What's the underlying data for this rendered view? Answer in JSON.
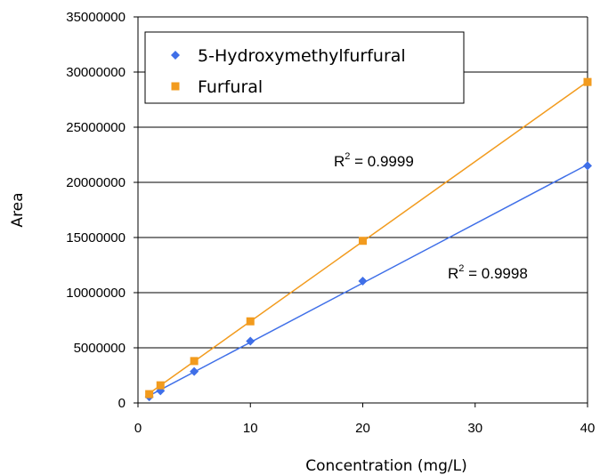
{
  "chart_data": {
    "type": "scatter",
    "title": "",
    "xlabel": "Concentration (mg/L)",
    "ylabel": "Area",
    "xlim": [
      0,
      40
    ],
    "ylim": [
      0,
      35000000
    ],
    "xticks": [
      0,
      10,
      20,
      30,
      40
    ],
    "yticks": [
      0,
      5000000,
      10000000,
      15000000,
      20000000,
      25000000,
      30000000,
      35000000
    ],
    "grid": "horizontal",
    "legend_position": "top-left",
    "series": [
      {
        "name": "5-Hydroxymethylfurfural",
        "marker": "diamond",
        "color": "#3f6fe8",
        "x": [
          1,
          2,
          5,
          10,
          20,
          40
        ],
        "y": [
          550000,
          1100000,
          2850000,
          5600000,
          11050000,
          21500000
        ],
        "trendline": true,
        "r2_label": "R",
        "r2_sup": "2",
        "r2_value": " = 0.9998"
      },
      {
        "name": "Furfural",
        "marker": "square",
        "color": "#f29b1e",
        "x": [
          1,
          2,
          5,
          10,
          20,
          40
        ],
        "y": [
          800000,
          1600000,
          3800000,
          7400000,
          14700000,
          29100000
        ],
        "trendline": true,
        "r2_label": "R",
        "r2_sup": "2",
        "r2_value": " = 0.9999"
      }
    ]
  }
}
